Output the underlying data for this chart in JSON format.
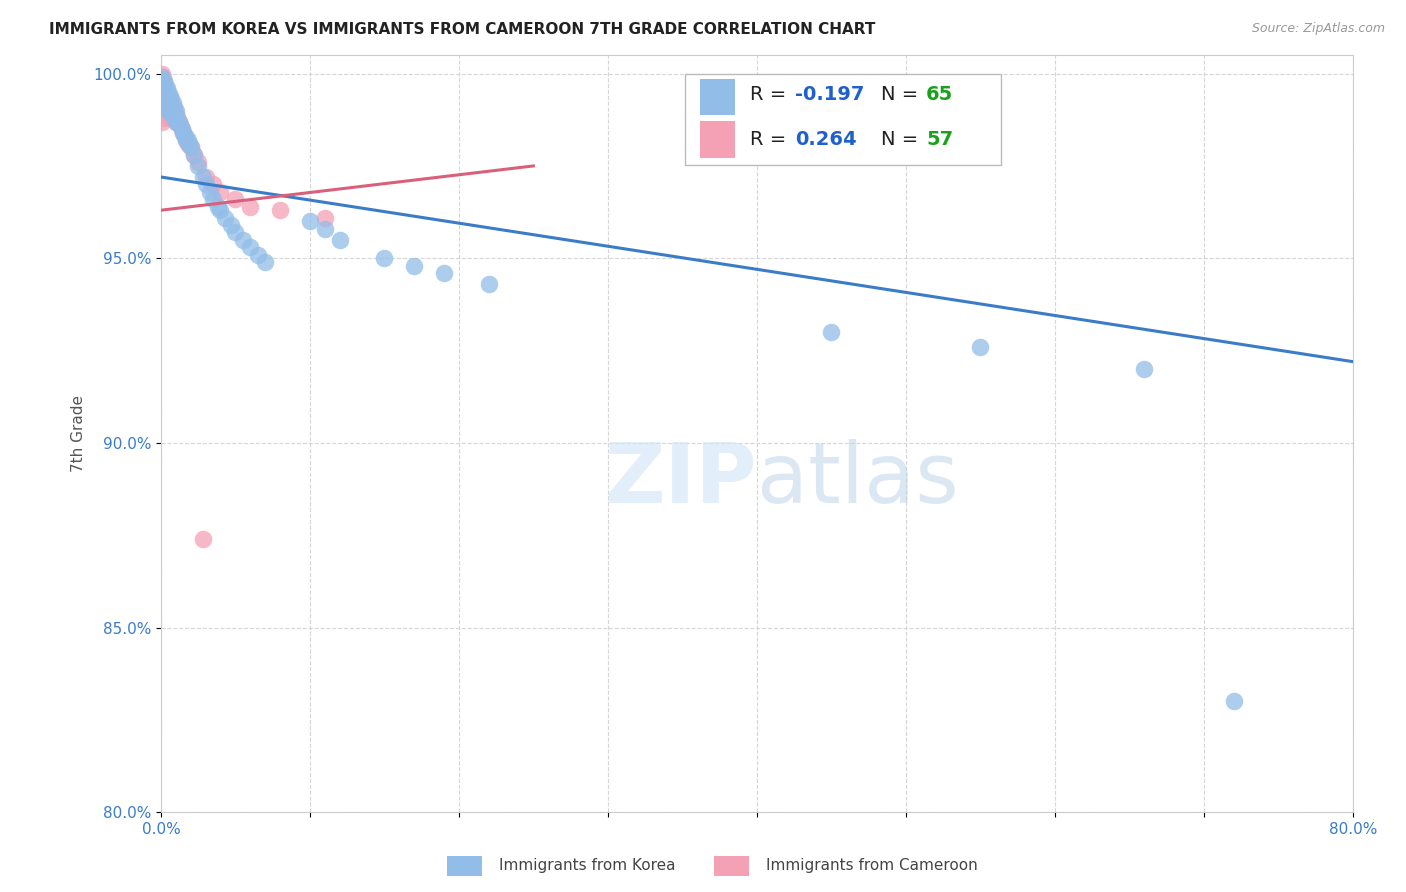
{
  "title": "IMMIGRANTS FROM KOREA VS IMMIGRANTS FROM CAMEROON 7TH GRADE CORRELATION CHART",
  "source": "Source: ZipAtlas.com",
  "ylabel_label": "7th Grade",
  "x_min": 0.0,
  "x_max": 0.8,
  "y_min": 0.8,
  "y_max": 1.005,
  "x_ticks": [
    0.0,
    0.1,
    0.2,
    0.3,
    0.4,
    0.5,
    0.6,
    0.7,
    0.8
  ],
  "y_ticks": [
    0.8,
    0.85,
    0.9,
    0.95,
    1.0
  ],
  "y_tick_labels": [
    "80.0%",
    "85.0%",
    "90.0%",
    "95.0%",
    "100.0%"
  ],
  "korea_color": "#92BDE8",
  "cameroon_color": "#F4A0B5",
  "korea_line_color": "#3B7CC9",
  "cameroon_line_color": "#D9607A",
  "korea_line_x": [
    0.0,
    0.8
  ],
  "korea_line_y": [
    0.972,
    0.922
  ],
  "cameroon_line_x": [
    0.0,
    0.25
  ],
  "cameroon_line_y": [
    0.963,
    0.975
  ],
  "korea_x": [
    0.001,
    0.001,
    0.001,
    0.001,
    0.001,
    0.001,
    0.002,
    0.002,
    0.002,
    0.003,
    0.003,
    0.003,
    0.003,
    0.004,
    0.004,
    0.004,
    0.005,
    0.005,
    0.005,
    0.006,
    0.006,
    0.007,
    0.007,
    0.008,
    0.008,
    0.009,
    0.009,
    0.01,
    0.01,
    0.011,
    0.012,
    0.013,
    0.014,
    0.015,
    0.016,
    0.017,
    0.018,
    0.019,
    0.02,
    0.022,
    0.025,
    0.028,
    0.03,
    0.033,
    0.035,
    0.038,
    0.04,
    0.043,
    0.047,
    0.05,
    0.055,
    0.06,
    0.065,
    0.07,
    0.1,
    0.11,
    0.12,
    0.15,
    0.17,
    0.19,
    0.22,
    0.45,
    0.55,
    0.66,
    0.72
  ],
  "korea_y": [
    0.999,
    0.998,
    0.997,
    0.996,
    0.994,
    0.992,
    0.998,
    0.996,
    0.994,
    0.997,
    0.995,
    0.993,
    0.991,
    0.996,
    0.994,
    0.992,
    0.995,
    0.993,
    0.99,
    0.994,
    0.992,
    0.993,
    0.99,
    0.992,
    0.989,
    0.991,
    0.988,
    0.99,
    0.987,
    0.988,
    0.987,
    0.986,
    0.985,
    0.984,
    0.983,
    0.982,
    0.982,
    0.981,
    0.98,
    0.978,
    0.975,
    0.972,
    0.97,
    0.968,
    0.966,
    0.964,
    0.963,
    0.961,
    0.959,
    0.957,
    0.955,
    0.953,
    0.951,
    0.949,
    0.96,
    0.958,
    0.955,
    0.95,
    0.948,
    0.946,
    0.943,
    0.93,
    0.926,
    0.92,
    0.83
  ],
  "cameroon_x": [
    0.001,
    0.001,
    0.001,
    0.001,
    0.001,
    0.001,
    0.001,
    0.001,
    0.001,
    0.001,
    0.002,
    0.002,
    0.002,
    0.002,
    0.002,
    0.003,
    0.003,
    0.003,
    0.003,
    0.003,
    0.004,
    0.004,
    0.004,
    0.004,
    0.005,
    0.005,
    0.005,
    0.006,
    0.006,
    0.007,
    0.007,
    0.007,
    0.008,
    0.008,
    0.009,
    0.009,
    0.01,
    0.01,
    0.011,
    0.012,
    0.013,
    0.014,
    0.015,
    0.016,
    0.017,
    0.018,
    0.02,
    0.022,
    0.025,
    0.028,
    0.03,
    0.035,
    0.04,
    0.05,
    0.06,
    0.08,
    0.11
  ],
  "cameroon_y": [
    1.0,
    0.999,
    0.998,
    0.997,
    0.996,
    0.995,
    0.993,
    0.991,
    0.989,
    0.987,
    0.998,
    0.996,
    0.994,
    0.992,
    0.99,
    0.996,
    0.994,
    0.992,
    0.99,
    0.988,
    0.995,
    0.993,
    0.991,
    0.989,
    0.994,
    0.992,
    0.99,
    0.993,
    0.991,
    0.992,
    0.99,
    0.988,
    0.991,
    0.989,
    0.99,
    0.988,
    0.989,
    0.987,
    0.988,
    0.987,
    0.986,
    0.985,
    0.984,
    0.983,
    0.982,
    0.981,
    0.98,
    0.978,
    0.976,
    0.874,
    0.972,
    0.97,
    0.968,
    0.966,
    0.964,
    0.963,
    0.961
  ],
  "watermark_zip": "ZIP",
  "watermark_atlas": "atlas"
}
